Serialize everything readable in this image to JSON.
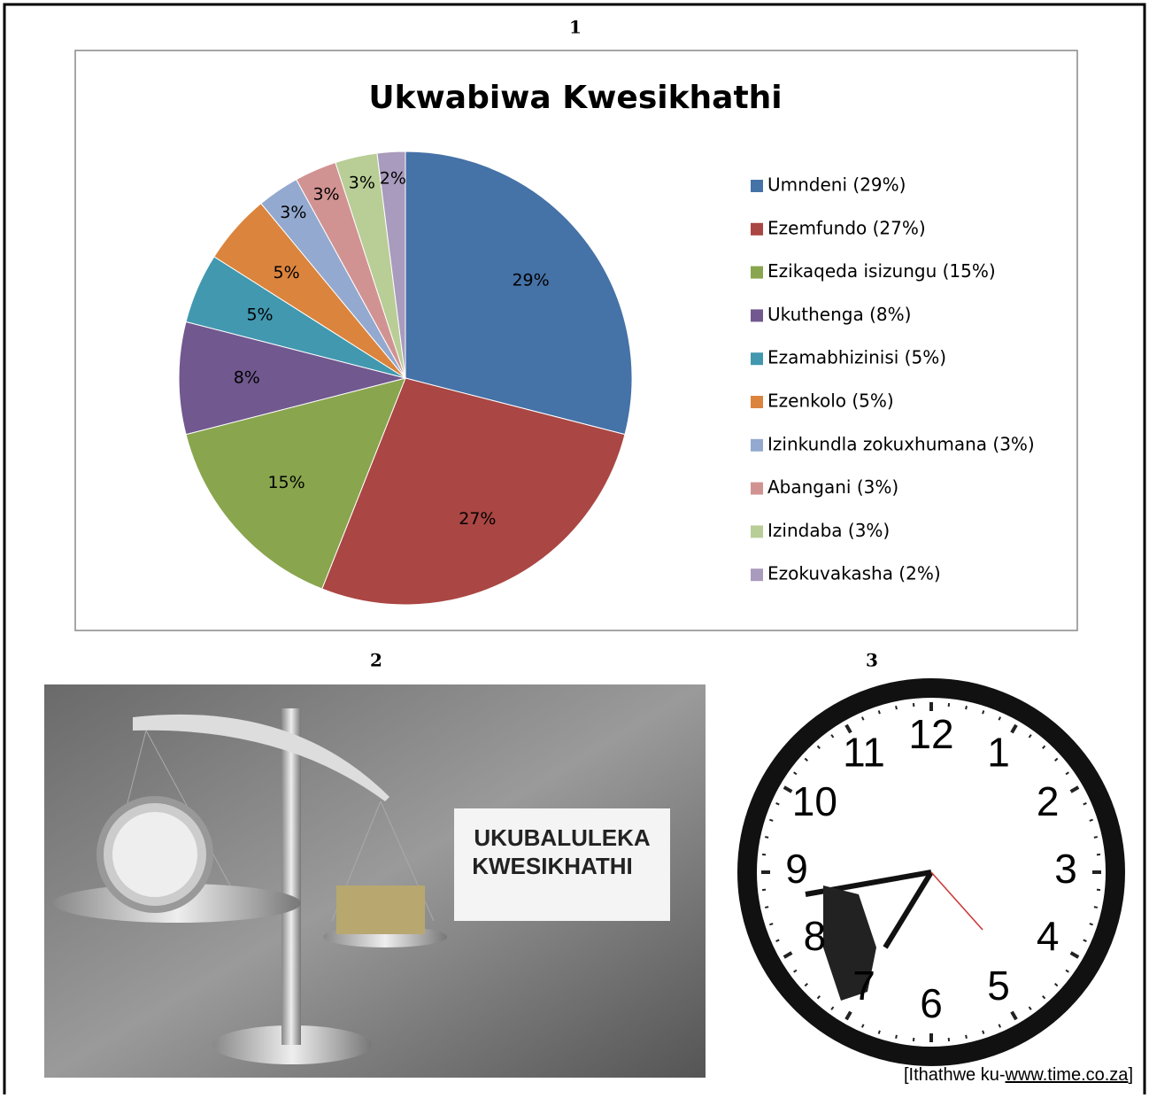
{
  "chart_data": {
    "type": "pie",
    "title": "Ukwabiwa Kwesikhathi",
    "categories": [
      "Umndeni (29%)",
      "Ezemfundo (27%)",
      "Ezikaqeda isizungu (15%)",
      "Ukuthenga (8%)",
      "Ezamabhizinisi (5%)",
      "Ezenkolo (5%)",
      "Izinkundla zokuxhumana (3%)",
      "Abangani (3%)",
      "Izindaba (3%)",
      "Ezokuvakasha (2%)"
    ],
    "values": [
      29,
      27,
      15,
      8,
      5,
      5,
      3,
      3,
      3,
      2
    ],
    "value_labels": [
      "29%",
      "27%",
      "15%",
      "8%",
      "5%",
      "5%",
      "3%",
      "3%",
      "3%",
      "2%"
    ],
    "colors": [
      "#4572a7",
      "#aa4643",
      "#89a54e",
      "#71588f",
      "#4198af",
      "#db843d",
      "#93a9cf",
      "#d19392",
      "#b9cd96",
      "#a99bbd"
    ],
    "legend": "right"
  },
  "figure_labels": [
    "1",
    "2",
    "3"
  ],
  "image_text": [
    "UKUBALULEKA",
    "KWESIKHATHI"
  ],
  "clock_numbers": [
    "12",
    "1",
    "2",
    "3",
    "4",
    "5",
    "6",
    "7",
    "8",
    "9",
    "10",
    "11"
  ],
  "source": {
    "prefix": "[Ithathwe ku-",
    "url": "www.time.co.za",
    "suffix": "]"
  }
}
